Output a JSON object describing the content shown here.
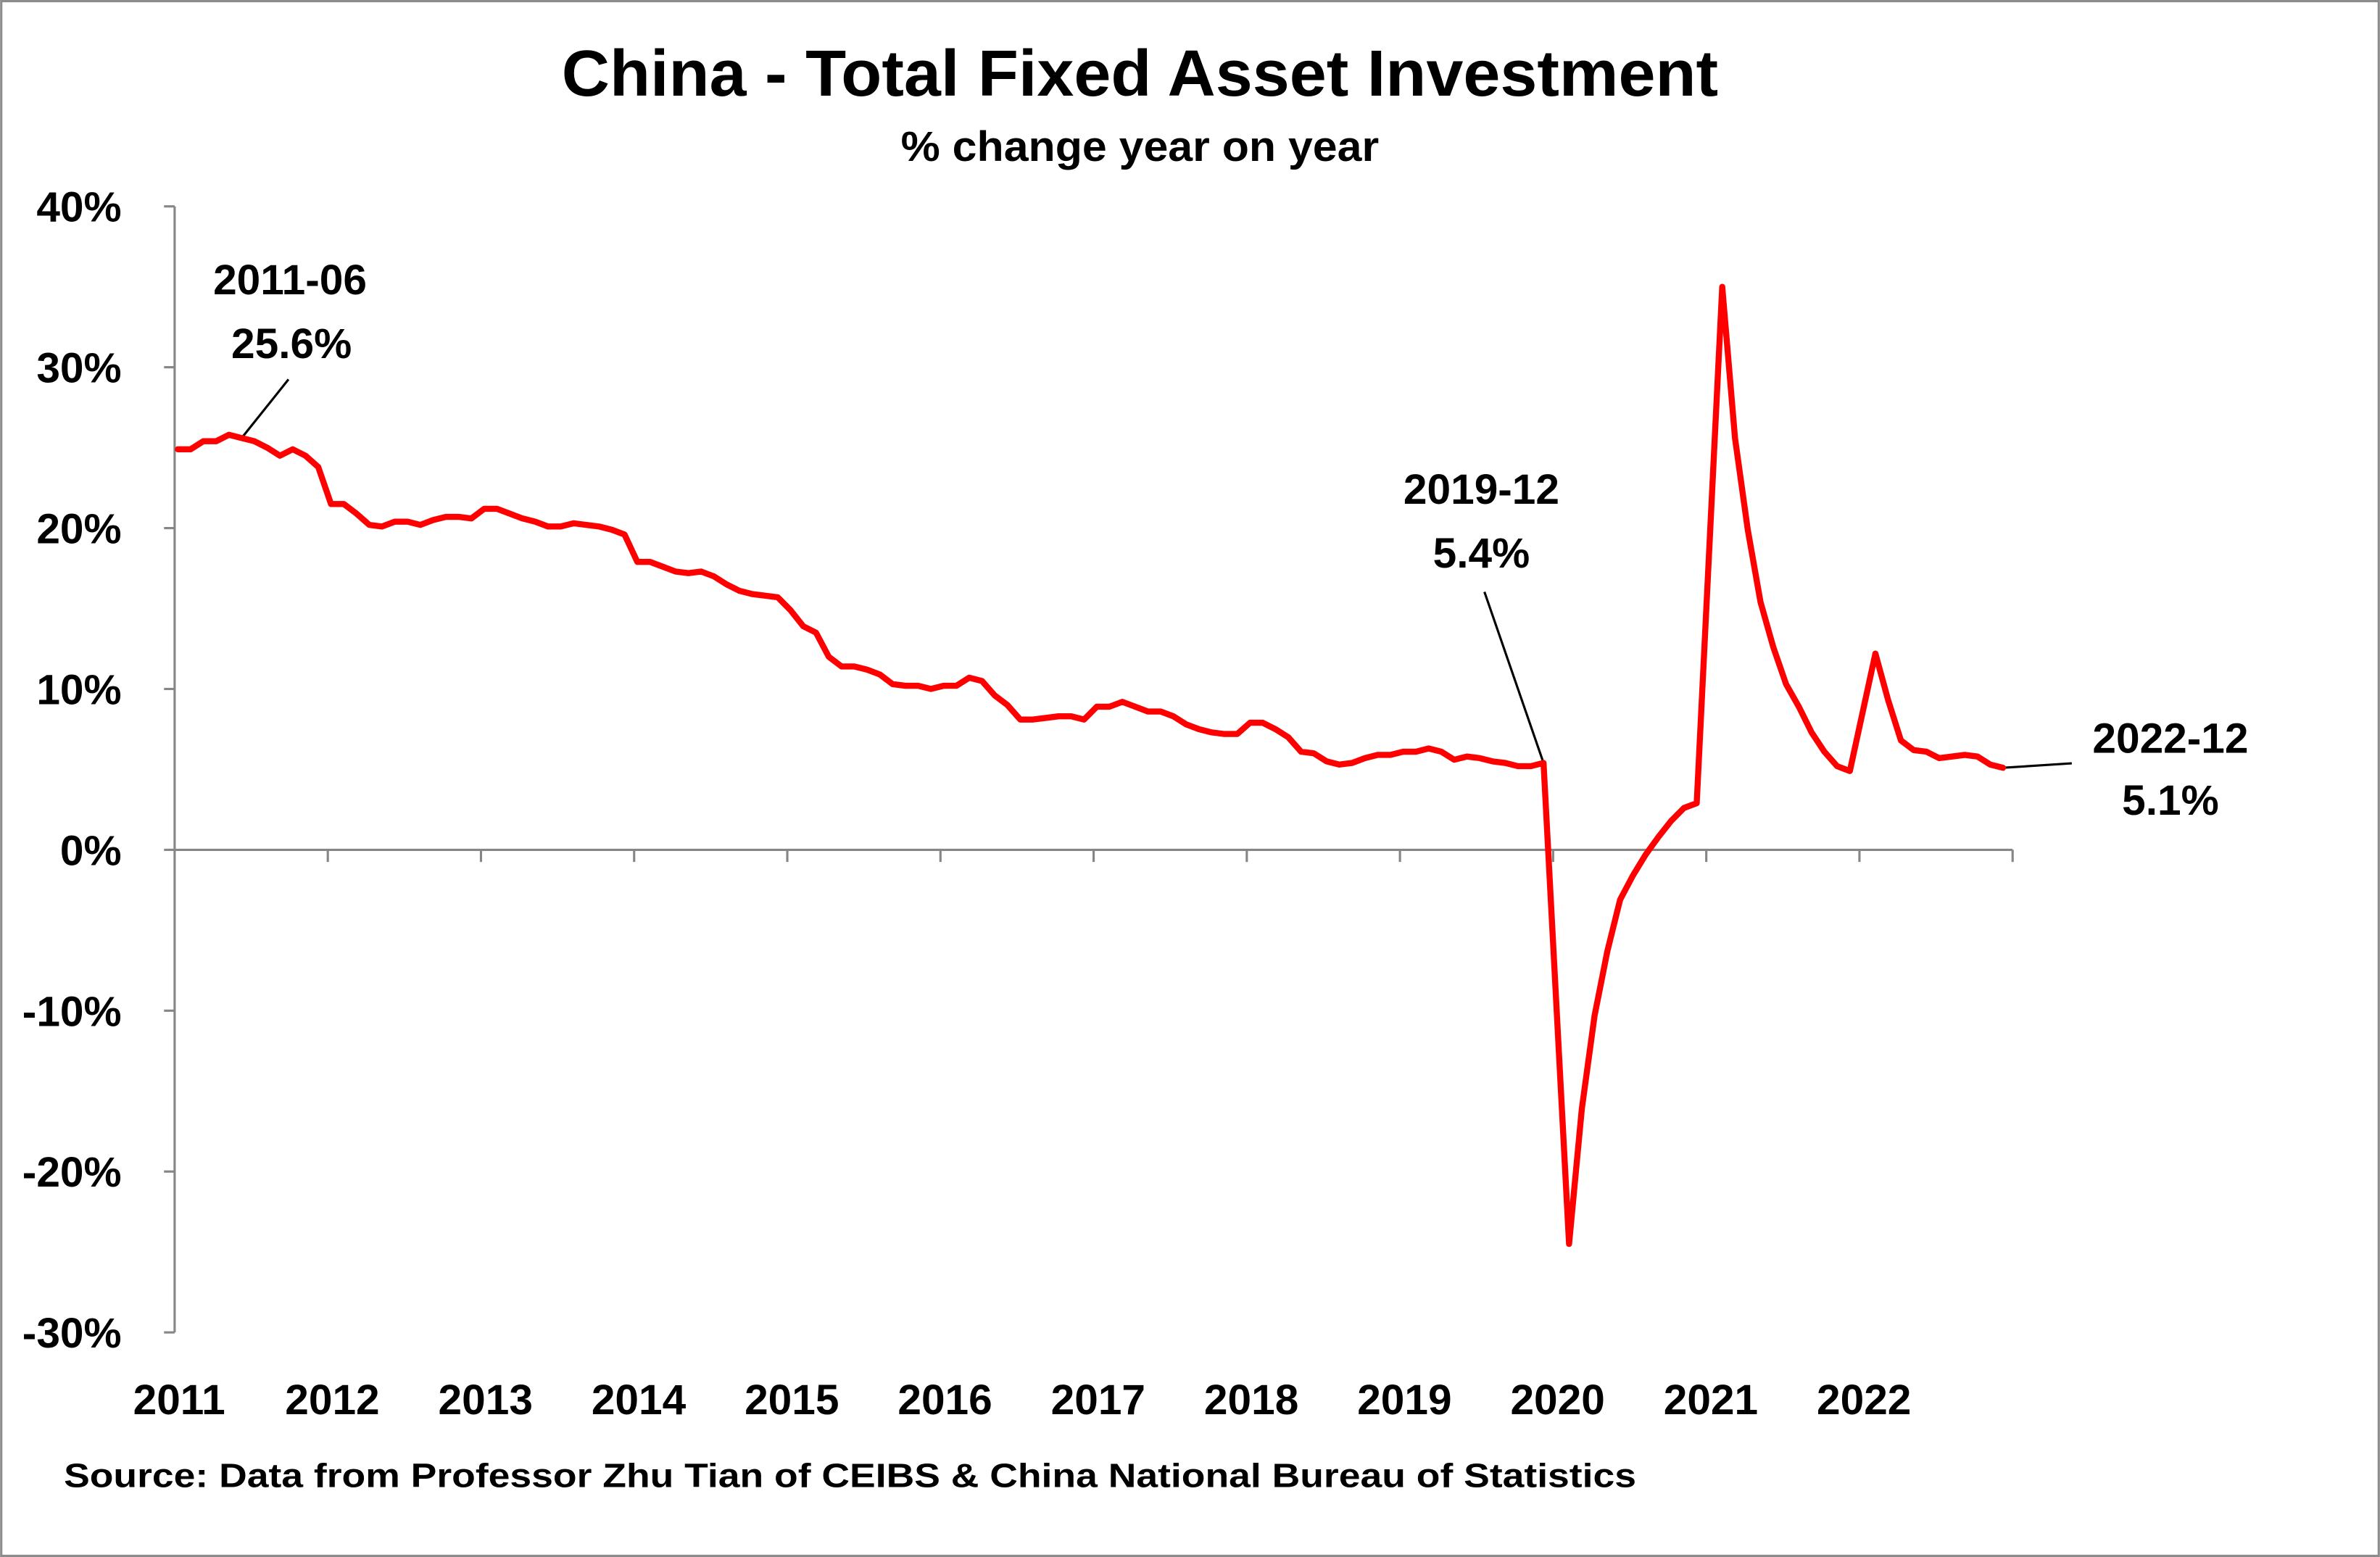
{
  "chart_data": {
    "type": "line",
    "title": "China - Total Fixed Asset Investment",
    "subtitle": "% change year on year",
    "xlabel": "",
    "ylabel": "",
    "ylim": [
      -30,
      40
    ],
    "xlim": [
      "2011-01",
      "2023-01"
    ],
    "grid": false,
    "legend": "none",
    "y_ticks": [
      {
        "value": 40,
        "label": "40%"
      },
      {
        "value": 30,
        "label": "30%"
      },
      {
        "value": 20,
        "label": "20%"
      },
      {
        "value": 10,
        "label": "10%"
      },
      {
        "value": 0,
        "label": "0%"
      },
      {
        "value": -10,
        "label": "-10%"
      },
      {
        "value": -20,
        "label": "-20%"
      },
      {
        "value": -30,
        "label": "-30%"
      }
    ],
    "x_ticks": [
      "2011",
      "2012",
      "2013",
      "2014",
      "2015",
      "2016",
      "2017",
      "2018",
      "2019",
      "2020",
      "2021",
      "2022"
    ],
    "series": [
      {
        "color": "#ff0000",
        "x": [
          "2011-01",
          "2011-02",
          "2011-03",
          "2011-04",
          "2011-05",
          "2011-06",
          "2011-07",
          "2011-08",
          "2011-09",
          "2011-10",
          "2011-11",
          "2011-12",
          "2012-01",
          "2012-02",
          "2012-03",
          "2012-04",
          "2012-05",
          "2012-06",
          "2012-07",
          "2012-08",
          "2012-09",
          "2012-10",
          "2012-11",
          "2012-12",
          "2013-01",
          "2013-02",
          "2013-03",
          "2013-04",
          "2013-05",
          "2013-06",
          "2013-07",
          "2013-08",
          "2013-09",
          "2013-10",
          "2013-11",
          "2013-12",
          "2014-01",
          "2014-02",
          "2014-03",
          "2014-04",
          "2014-05",
          "2014-06",
          "2014-07",
          "2014-08",
          "2014-09",
          "2014-10",
          "2014-11",
          "2014-12",
          "2015-01",
          "2015-02",
          "2015-03",
          "2015-04",
          "2015-05",
          "2015-06",
          "2015-07",
          "2015-08",
          "2015-09",
          "2015-10",
          "2015-11",
          "2015-12",
          "2016-01",
          "2016-02",
          "2016-03",
          "2016-04",
          "2016-05",
          "2016-06",
          "2016-07",
          "2016-08",
          "2016-09",
          "2016-10",
          "2016-11",
          "2016-12",
          "2017-01",
          "2017-02",
          "2017-03",
          "2017-04",
          "2017-05",
          "2017-06",
          "2017-07",
          "2017-08",
          "2017-09",
          "2017-10",
          "2017-11",
          "2017-12",
          "2018-01",
          "2018-02",
          "2018-03",
          "2018-04",
          "2018-05",
          "2018-06",
          "2018-07",
          "2018-08",
          "2018-09",
          "2018-10",
          "2018-11",
          "2018-12",
          "2019-01",
          "2019-02",
          "2019-03",
          "2019-04",
          "2019-05",
          "2019-06",
          "2019-07",
          "2019-08",
          "2019-09",
          "2019-10",
          "2019-11",
          "2019-12",
          "2020-02",
          "2020-03",
          "2020-04",
          "2020-05",
          "2020-06",
          "2020-07",
          "2020-08",
          "2020-09",
          "2020-10",
          "2020-11",
          "2020-12",
          "2021-02",
          "2021-03",
          "2021-04",
          "2021-05",
          "2021-06",
          "2021-07",
          "2021-08",
          "2021-09",
          "2021-10",
          "2021-11",
          "2021-12",
          "2022-02",
          "2022-03",
          "2022-04",
          "2022-05",
          "2022-06",
          "2022-07",
          "2022-08",
          "2022-09",
          "2022-10",
          "2022-11",
          "2022-12"
        ],
        "values": [
          24.9,
          24.9,
          25.4,
          25.4,
          25.8,
          25.6,
          25.4,
          25.0,
          24.5,
          24.9,
          24.5,
          23.8,
          21.5,
          21.5,
          20.9,
          20.2,
          20.1,
          20.4,
          20.4,
          20.2,
          20.5,
          20.7,
          20.7,
          20.6,
          21.2,
          21.2,
          20.9,
          20.6,
          20.4,
          20.1,
          20.1,
          20.3,
          20.2,
          20.1,
          19.9,
          19.6,
          17.9,
          17.9,
          17.6,
          17.3,
          17.2,
          17.3,
          17.0,
          16.5,
          16.1,
          15.9,
          15.8,
          15.7,
          14.9,
          13.9,
          13.5,
          12.0,
          11.4,
          11.4,
          11.2,
          10.9,
          10.3,
          10.2,
          10.2,
          10.0,
          10.2,
          10.2,
          10.7,
          10.5,
          9.6,
          9.0,
          8.1,
          8.1,
          8.2,
          8.3,
          8.3,
          8.1,
          8.9,
          8.9,
          9.2,
          8.9,
          8.6,
          8.6,
          8.3,
          7.8,
          7.5,
          7.3,
          7.2,
          7.2,
          7.9,
          7.9,
          7.5,
          7.0,
          6.1,
          6.0,
          5.5,
          5.3,
          5.4,
          5.7,
          5.9,
          5.9,
          6.1,
          6.1,
          6.3,
          6.1,
          5.6,
          5.8,
          5.7,
          5.5,
          5.4,
          5.2,
          5.2,
          5.4,
          -24.5,
          -16.1,
          -10.3,
          -6.3,
          -3.1,
          -1.6,
          -0.3,
          0.8,
          1.8,
          2.6,
          2.9,
          35.0,
          25.6,
          19.9,
          15.4,
          12.6,
          10.3,
          8.9,
          7.3,
          6.1,
          5.2,
          4.9,
          12.2,
          9.3,
          6.8,
          6.2,
          6.1,
          5.7,
          5.8,
          5.9,
          5.8,
          5.3,
          5.1
        ]
      }
    ],
    "annotations": [
      {
        "date": "2011-06",
        "value": "25.6%"
      },
      {
        "date": "2019-12",
        "value": "5.4%"
      },
      {
        "date": "2022-12",
        "value": "5.1%"
      }
    ],
    "source": "Source: Data from Professor Zhu Tian of CEIBS & China National Bureau of Statistics"
  }
}
